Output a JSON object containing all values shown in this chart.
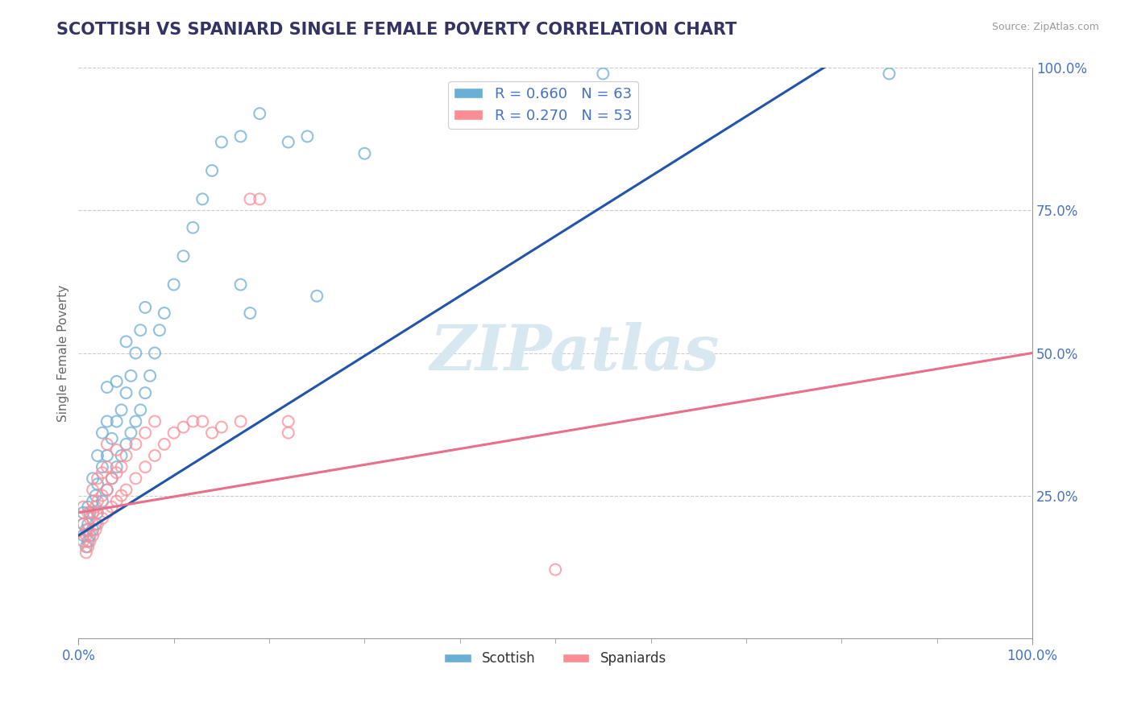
{
  "title": "SCOTTISH VS SPANIARD SINGLE FEMALE POVERTY CORRELATION CHART",
  "source": "Source: ZipAtlas.com",
  "ylabel": "Single Female Poverty",
  "scottish_color": "#6baed6",
  "spaniard_color": "#fc8d94",
  "scottish_R": 0.66,
  "scottish_N": 63,
  "spaniard_R": 0.27,
  "spaniard_N": 53,
  "background_color": "#ffffff",
  "grid_color": "#cccccc",
  "watermark": "ZIPatlas",
  "title_color": "#333366",
  "axis_label_color": "#4472c4",
  "legend_text_color": "#4472c4",
  "sc_line_color": "#2255aa",
  "sp_line_color": "#e8708a",
  "sc_slope": 1.05,
  "sc_intercept": 0.18,
  "sp_slope": 0.28,
  "sp_intercept": 0.22,
  "scottish_points": [
    [
      0.005,
      0.18
    ],
    [
      0.005,
      0.2
    ],
    [
      0.005,
      0.22
    ],
    [
      0.008,
      0.16
    ],
    [
      0.008,
      0.19
    ],
    [
      0.01,
      0.17
    ],
    [
      0.01,
      0.2
    ],
    [
      0.01,
      0.23
    ],
    [
      0.012,
      0.18
    ],
    [
      0.012,
      0.22
    ],
    [
      0.015,
      0.19
    ],
    [
      0.015,
      0.24
    ],
    [
      0.015,
      0.28
    ],
    [
      0.018,
      0.2
    ],
    [
      0.018,
      0.25
    ],
    [
      0.02,
      0.22
    ],
    [
      0.02,
      0.27
    ],
    [
      0.02,
      0.32
    ],
    [
      0.025,
      0.24
    ],
    [
      0.025,
      0.3
    ],
    [
      0.025,
      0.36
    ],
    [
      0.03,
      0.26
    ],
    [
      0.03,
      0.32
    ],
    [
      0.03,
      0.38
    ],
    [
      0.03,
      0.44
    ],
    [
      0.035,
      0.28
    ],
    [
      0.035,
      0.35
    ],
    [
      0.04,
      0.3
    ],
    [
      0.04,
      0.38
    ],
    [
      0.04,
      0.45
    ],
    [
      0.045,
      0.32
    ],
    [
      0.045,
      0.4
    ],
    [
      0.05,
      0.34
    ],
    [
      0.05,
      0.43
    ],
    [
      0.05,
      0.52
    ],
    [
      0.055,
      0.36
    ],
    [
      0.055,
      0.46
    ],
    [
      0.06,
      0.38
    ],
    [
      0.06,
      0.5
    ],
    [
      0.065,
      0.4
    ],
    [
      0.065,
      0.54
    ],
    [
      0.07,
      0.43
    ],
    [
      0.07,
      0.58
    ],
    [
      0.075,
      0.46
    ],
    [
      0.08,
      0.5
    ],
    [
      0.085,
      0.54
    ],
    [
      0.09,
      0.57
    ],
    [
      0.1,
      0.62
    ],
    [
      0.11,
      0.67
    ],
    [
      0.12,
      0.72
    ],
    [
      0.13,
      0.77
    ],
    [
      0.14,
      0.82
    ],
    [
      0.15,
      0.87
    ],
    [
      0.17,
      0.88
    ],
    [
      0.19,
      0.92
    ],
    [
      0.22,
      0.87
    ],
    [
      0.24,
      0.88
    ],
    [
      0.25,
      0.6
    ],
    [
      0.17,
      0.62
    ],
    [
      0.18,
      0.57
    ],
    [
      0.3,
      0.85
    ],
    [
      0.55,
      0.99
    ],
    [
      0.85,
      0.99
    ]
  ],
  "spaniard_points": [
    [
      0.005,
      0.17
    ],
    [
      0.005,
      0.2
    ],
    [
      0.005,
      0.23
    ],
    [
      0.008,
      0.15
    ],
    [
      0.008,
      0.18
    ],
    [
      0.01,
      0.16
    ],
    [
      0.01,
      0.19
    ],
    [
      0.01,
      0.22
    ],
    [
      0.012,
      0.17
    ],
    [
      0.012,
      0.21
    ],
    [
      0.015,
      0.18
    ],
    [
      0.015,
      0.22
    ],
    [
      0.015,
      0.26
    ],
    [
      0.018,
      0.19
    ],
    [
      0.018,
      0.23
    ],
    [
      0.02,
      0.2
    ],
    [
      0.02,
      0.24
    ],
    [
      0.02,
      0.28
    ],
    [
      0.025,
      0.21
    ],
    [
      0.025,
      0.25
    ],
    [
      0.025,
      0.29
    ],
    [
      0.03,
      0.22
    ],
    [
      0.03,
      0.26
    ],
    [
      0.03,
      0.3
    ],
    [
      0.03,
      0.34
    ],
    [
      0.035,
      0.23
    ],
    [
      0.035,
      0.28
    ],
    [
      0.04,
      0.24
    ],
    [
      0.04,
      0.29
    ],
    [
      0.04,
      0.33
    ],
    [
      0.045,
      0.25
    ],
    [
      0.045,
      0.3
    ],
    [
      0.05,
      0.26
    ],
    [
      0.05,
      0.32
    ],
    [
      0.06,
      0.28
    ],
    [
      0.06,
      0.34
    ],
    [
      0.07,
      0.3
    ],
    [
      0.07,
      0.36
    ],
    [
      0.08,
      0.32
    ],
    [
      0.08,
      0.38
    ],
    [
      0.09,
      0.34
    ],
    [
      0.1,
      0.36
    ],
    [
      0.11,
      0.37
    ],
    [
      0.12,
      0.38
    ],
    [
      0.13,
      0.38
    ],
    [
      0.14,
      0.36
    ],
    [
      0.15,
      0.37
    ],
    [
      0.17,
      0.38
    ],
    [
      0.18,
      0.77
    ],
    [
      0.19,
      0.77
    ],
    [
      0.22,
      0.36
    ],
    [
      0.22,
      0.38
    ],
    [
      0.5,
      0.12
    ]
  ]
}
